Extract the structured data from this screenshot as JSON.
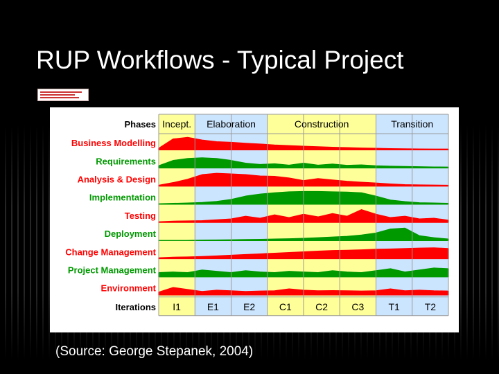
{
  "slide": {
    "title": "RUP Workflows - Typical Project",
    "caption": "(Source: George Stepanek, 2004)"
  },
  "chart": {
    "phases_label": "Phases",
    "iterations_label": "Iterations",
    "phases": [
      {
        "name": "Incept.",
        "span": 1
      },
      {
        "name": "Elaboration",
        "span": 2
      },
      {
        "name": "Construction",
        "span": 3
      },
      {
        "name": "Transition",
        "span": 2
      }
    ],
    "iterations": [
      "I1",
      "E1",
      "E2",
      "C1",
      "C2",
      "C3",
      "T1",
      "T2"
    ],
    "colors": {
      "phase_fill_alt": "#ffff99",
      "phase_fill": "#cce5ff",
      "red": "#ff0000",
      "green": "#009900",
      "grid": "#999999"
    },
    "workflows": [
      {
        "name": "Business Modelling",
        "color": "red",
        "profile": [
          0.1,
          0.8,
          0.92,
          0.72,
          0.6,
          0.55,
          0.48,
          0.42,
          0.35,
          0.3,
          0.26,
          0.22,
          0.18,
          0.15,
          0.12,
          0.1,
          0.08,
          0.06,
          0.05,
          0.04,
          0.04
        ]
      },
      {
        "name": "Requirements",
        "color": "green",
        "profile": [
          0.15,
          0.55,
          0.7,
          0.75,
          0.7,
          0.55,
          0.35,
          0.25,
          0.3,
          0.2,
          0.35,
          0.2,
          0.28,
          0.18,
          0.22,
          0.15,
          0.12,
          0.1,
          0.08,
          0.06,
          0.05
        ]
      },
      {
        "name": "Analysis & Design",
        "color": "red",
        "profile": [
          0.05,
          0.25,
          0.5,
          0.85,
          0.95,
          0.9,
          0.85,
          0.75,
          0.72,
          0.6,
          0.4,
          0.55,
          0.45,
          0.35,
          0.28,
          0.22,
          0.15,
          0.1,
          0.08,
          0.06,
          0.05
        ]
      },
      {
        "name": "Implementation",
        "color": "green",
        "profile": [
          0.02,
          0.05,
          0.08,
          0.12,
          0.2,
          0.35,
          0.6,
          0.75,
          0.85,
          0.92,
          0.95,
          0.95,
          0.92,
          0.9,
          0.85,
          0.6,
          0.3,
          0.18,
          0.1,
          0.08,
          0.05
        ]
      },
      {
        "name": "Testing",
        "color": "red",
        "profile": [
          0.03,
          0.08,
          0.1,
          0.12,
          0.18,
          0.25,
          0.45,
          0.3,
          0.55,
          0.35,
          0.6,
          0.4,
          0.65,
          0.45,
          0.95,
          0.6,
          0.35,
          0.45,
          0.25,
          0.3,
          0.15
        ]
      },
      {
        "name": "Deployment",
        "color": "green",
        "profile": [
          0.0,
          0.0,
          0.0,
          0.02,
          0.03,
          0.04,
          0.06,
          0.08,
          0.1,
          0.12,
          0.15,
          0.2,
          0.25,
          0.3,
          0.4,
          0.55,
          0.85,
          0.92,
          0.35,
          0.2,
          0.1
        ]
      },
      {
        "name": "Change Management",
        "color": "red",
        "profile": [
          0.05,
          0.1,
          0.12,
          0.15,
          0.2,
          0.25,
          0.3,
          0.35,
          0.4,
          0.45,
          0.5,
          0.55,
          0.6,
          0.62,
          0.65,
          0.7,
          0.72,
          0.75,
          0.78,
          0.8,
          0.75
        ]
      },
      {
        "name": "Project Management",
        "color": "green",
        "profile": [
          0.3,
          0.35,
          0.3,
          0.5,
          0.4,
          0.3,
          0.45,
          0.35,
          0.3,
          0.4,
          0.35,
          0.3,
          0.45,
          0.35,
          0.3,
          0.45,
          0.6,
          0.35,
          0.5,
          0.65,
          0.6
        ]
      },
      {
        "name": "Environment",
        "color": "red",
        "profile": [
          0.2,
          0.55,
          0.4,
          0.25,
          0.35,
          0.3,
          0.25,
          0.28,
          0.3,
          0.45,
          0.35,
          0.3,
          0.32,
          0.3,
          0.28,
          0.3,
          0.45,
          0.3,
          0.35,
          0.3,
          0.28
        ]
      }
    ]
  }
}
